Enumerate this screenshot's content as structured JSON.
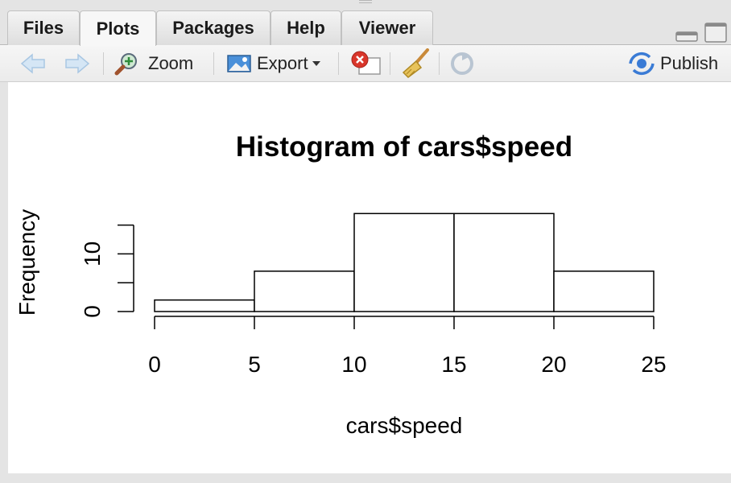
{
  "tabs": [
    {
      "label": "Files"
    },
    {
      "label": "Plots"
    },
    {
      "label": "Packages"
    },
    {
      "label": "Help"
    },
    {
      "label": "Viewer"
    }
  ],
  "active_tab": "Plots",
  "toolbar": {
    "zoom_label": "Zoom",
    "export_label": "Export",
    "publish_label": "Publish"
  },
  "icons": [
    "back-arrow-icon",
    "forward-arrow-icon",
    "zoom-icon",
    "export-icon",
    "remove-plot-icon",
    "broom-icon",
    "refresh-icon",
    "publish-icon",
    "minimize-icon",
    "maximize-icon"
  ],
  "colors": {
    "accent_blue": "#3a7bd5",
    "remove_red": "#d9362b"
  },
  "chart_data": {
    "type": "bar",
    "title": "Histogram of cars$speed",
    "xlabel": "cars$speed",
    "ylabel": "Frequency",
    "bins": [
      [
        0,
        5
      ],
      [
        5,
        10
      ],
      [
        10,
        15
      ],
      [
        15,
        20
      ],
      [
        20,
        25
      ]
    ],
    "values": [
      2,
      7,
      17,
      17,
      7
    ],
    "xticks": [
      0,
      5,
      10,
      15,
      20,
      25
    ],
    "yticks": [
      0,
      10
    ],
    "xlim": [
      0,
      25
    ],
    "ylim": [
      0,
      15
    ],
    "grid": false
  }
}
